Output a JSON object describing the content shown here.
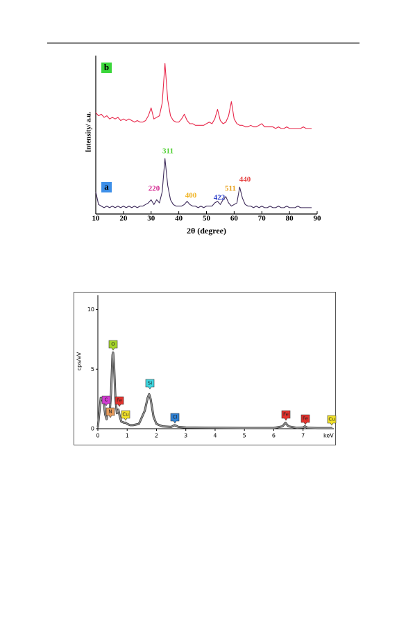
{
  "chart_data": [
    {
      "type": "line",
      "x_label": "2θ (degree)",
      "y_label": "Intensity/ a.u.",
      "xlim": [
        10,
        90
      ],
      "xticks": [
        10,
        20,
        30,
        40,
        50,
        60,
        70,
        80,
        90
      ],
      "ylim": [
        0,
        100
      ],
      "x": [
        10,
        11,
        12,
        13,
        14,
        15,
        16,
        17,
        18,
        19,
        20,
        21,
        22,
        23,
        24,
        25,
        26,
        27,
        28,
        29,
        30,
        31,
        32,
        33,
        34,
        35,
        36,
        37,
        38,
        39,
        40,
        41,
        42,
        43,
        44,
        45,
        46,
        47,
        48,
        49,
        50,
        51,
        52,
        53,
        54,
        55,
        56,
        57,
        58,
        59,
        60,
        61,
        62,
        63,
        64,
        65,
        66,
        67,
        68,
        69,
        70,
        71,
        72,
        73,
        74,
        75,
        76,
        77,
        78,
        79,
        80,
        81,
        82,
        83,
        84,
        85,
        86,
        87,
        88
      ],
      "series": [
        {
          "name": "b",
          "color": "#e8274a",
          "label_color": "#3ad63a",
          "values": [
            64,
            62,
            63,
            61,
            62,
            60,
            61,
            60,
            61,
            59,
            60,
            59,
            60,
            59,
            58,
            59,
            58,
            58,
            59,
            62,
            67,
            60,
            61,
            62,
            70,
            95,
            72,
            62,
            59,
            58,
            58,
            60,
            63,
            59,
            57,
            57,
            56,
            56,
            56,
            56,
            57,
            58,
            57,
            60,
            66,
            59,
            57,
            58,
            62,
            71,
            60,
            57,
            56,
            56,
            55,
            55,
            56,
            55,
            55,
            56,
            57,
            55,
            55,
            55,
            55,
            54,
            55,
            54,
            54,
            55,
            54,
            54,
            54,
            54,
            54,
            55,
            54,
            54,
            54
          ]
        },
        {
          "name": "a",
          "color": "#3d2a5a",
          "label_color": "#3d8fe8",
          "values": [
            14,
            6,
            5,
            4,
            5,
            4,
            5,
            4,
            5,
            4,
            5,
            4,
            5,
            4,
            5,
            4,
            5,
            5,
            6,
            7,
            9,
            6,
            9,
            7,
            14,
            35,
            18,
            9,
            6,
            5,
            5,
            5,
            6,
            8,
            6,
            5,
            5,
            4,
            5,
            4,
            5,
            5,
            5,
            7,
            8,
            6,
            9,
            11,
            7,
            5,
            6,
            7,
            17,
            10,
            6,
            5,
            5,
            4,
            5,
            4,
            5,
            4,
            4,
            5,
            4,
            4,
            5,
            4,
            4,
            5,
            4,
            4,
            4,
            5,
            4,
            4,
            4,
            4,
            4
          ]
        }
      ],
      "annotations": [
        {
          "text": "220",
          "color": "#d4258f"
        },
        {
          "text": "311",
          "color": "#4ccf2e"
        },
        {
          "text": "400",
          "color": "#f0b21e"
        },
        {
          "text": "422",
          "color": "#2b3ec9"
        },
        {
          "text": "511",
          "color": "#e8a11b"
        },
        {
          "text": "440",
          "color": "#e53a3a"
        }
      ]
    },
    {
      "type": "line",
      "x_label": "keV",
      "y_label": "cps/eV",
      "xlim": [
        0,
        8.05
      ],
      "xticks": [
        0,
        1,
        2,
        3,
        4,
        5,
        6,
        7
      ],
      "ylim": [
        0,
        11.2
      ],
      "yticks": [
        0,
        5,
        10
      ],
      "x": [
        0,
        0.1,
        0.2,
        0.25,
        0.3,
        0.35,
        0.4,
        0.45,
        0.5,
        0.52,
        0.55,
        0.6,
        0.65,
        0.7,
        0.75,
        0.8,
        0.9,
        0.95,
        1.0,
        1.1,
        1.2,
        1.4,
        1.6,
        1.7,
        1.75,
        1.8,
        1.9,
        2.0,
        2.2,
        2.5,
        2.62,
        2.75,
        3,
        4,
        5,
        6,
        6.3,
        6.4,
        6.5,
        6.8,
        7.0,
        7.06,
        7.15,
        7.5,
        8.0
      ],
      "series": [
        {
          "name": "spectrum",
          "color": "#9a9a9a",
          "values": [
            0.1,
            2.6,
            2.2,
            1.2,
            0.8,
            1.5,
            1.2,
            3,
            6.2,
            6.4,
            5.5,
            2.5,
            1.3,
            1.6,
            1.0,
            0.6,
            0.5,
            0.5,
            0.4,
            0.3,
            0.3,
            0.4,
            1.5,
            2.6,
            2.9,
            2.5,
            1.0,
            0.4,
            0.2,
            0.15,
            0.3,
            0.15,
            0.1,
            0.08,
            0.06,
            0.06,
            0.2,
            0.5,
            0.2,
            0.07,
            0.1,
            0.2,
            0.08,
            0.05,
            0.05
          ]
        }
      ],
      "annotations": [
        {
          "text": "C",
          "color": "#d23cd2"
        },
        {
          "text": "N",
          "color": "#e59a5a"
        },
        {
          "text": "Fe",
          "color": "#e5322d"
        },
        {
          "text": "O",
          "color": "#a6d62a"
        },
        {
          "text": "Cu",
          "color": "#f2e22a"
        },
        {
          "text": "Si",
          "color": "#3fd6e0"
        },
        {
          "text": "Cl",
          "color": "#2f82d6"
        },
        {
          "text": "Fe",
          "color": "#e5322d"
        },
        {
          "text": "Fe",
          "color": "#e5322d"
        },
        {
          "text": "Cu",
          "color": "#f2e22a"
        }
      ]
    }
  ]
}
